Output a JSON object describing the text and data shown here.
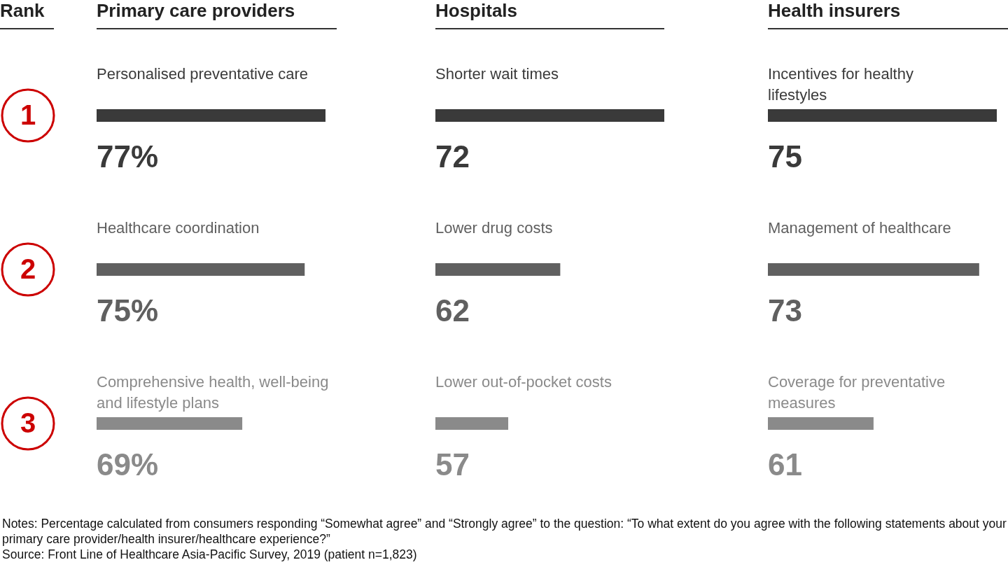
{
  "chart_data": [
    {
      "type": "bar",
      "orientation": "horizontal",
      "title": "Primary care providers",
      "categories": [
        "Personalised preventative care",
        "Healthcare coordination",
        "Comprehensive health, well-being and lifestyle plans"
      ],
      "values": [
        77,
        75,
        69
      ],
      "value_labels": [
        "77%",
        "75%",
        "69%"
      ],
      "colors": [
        "#3a3a3a",
        "#606060",
        "#8a8a8a"
      ],
      "xlim": [
        55,
        77
      ],
      "annotations": [
        "Rank",
        "1",
        "2",
        "3",
        "Notes: Percentage calculated from consumers responding “Somewhat agree” and “Strongly agree” to the question: “To what extent do you agree with the following statements about your primary care provider/health insurer/healthcare experience?”",
        "Source: Front Line of Healthcare Asia-Pacific Survey, 2019 (patient n=1,823)"
      ]
    },
    {
      "type": "bar",
      "orientation": "horizontal",
      "title": "Hospitals",
      "categories": [
        "Shorter wait times",
        "Lower drug costs",
        "Lower out-of-pocket costs"
      ],
      "values": [
        72,
        62,
        57
      ],
      "data_labels": true,
      "colors": [
        "#3a3a3a",
        "#606060",
        "#8a8a8a"
      ],
      "xlim": [
        50,
        72
      ]
    },
    {
      "type": "bar",
      "orientation": "horizontal",
      "title": "Health insurers",
      "categories": [
        "Incentives for healthy lifestyles",
        "Management of healthcare",
        "Coverage for preventative measures"
      ],
      "values": [
        75,
        73,
        61
      ],
      "data_labels": true,
      "colors": [
        "#3a3a3a",
        "#606060",
        "#8a8a8a"
      ],
      "xlim": [
        49,
        75
      ]
    }
  ]
}
